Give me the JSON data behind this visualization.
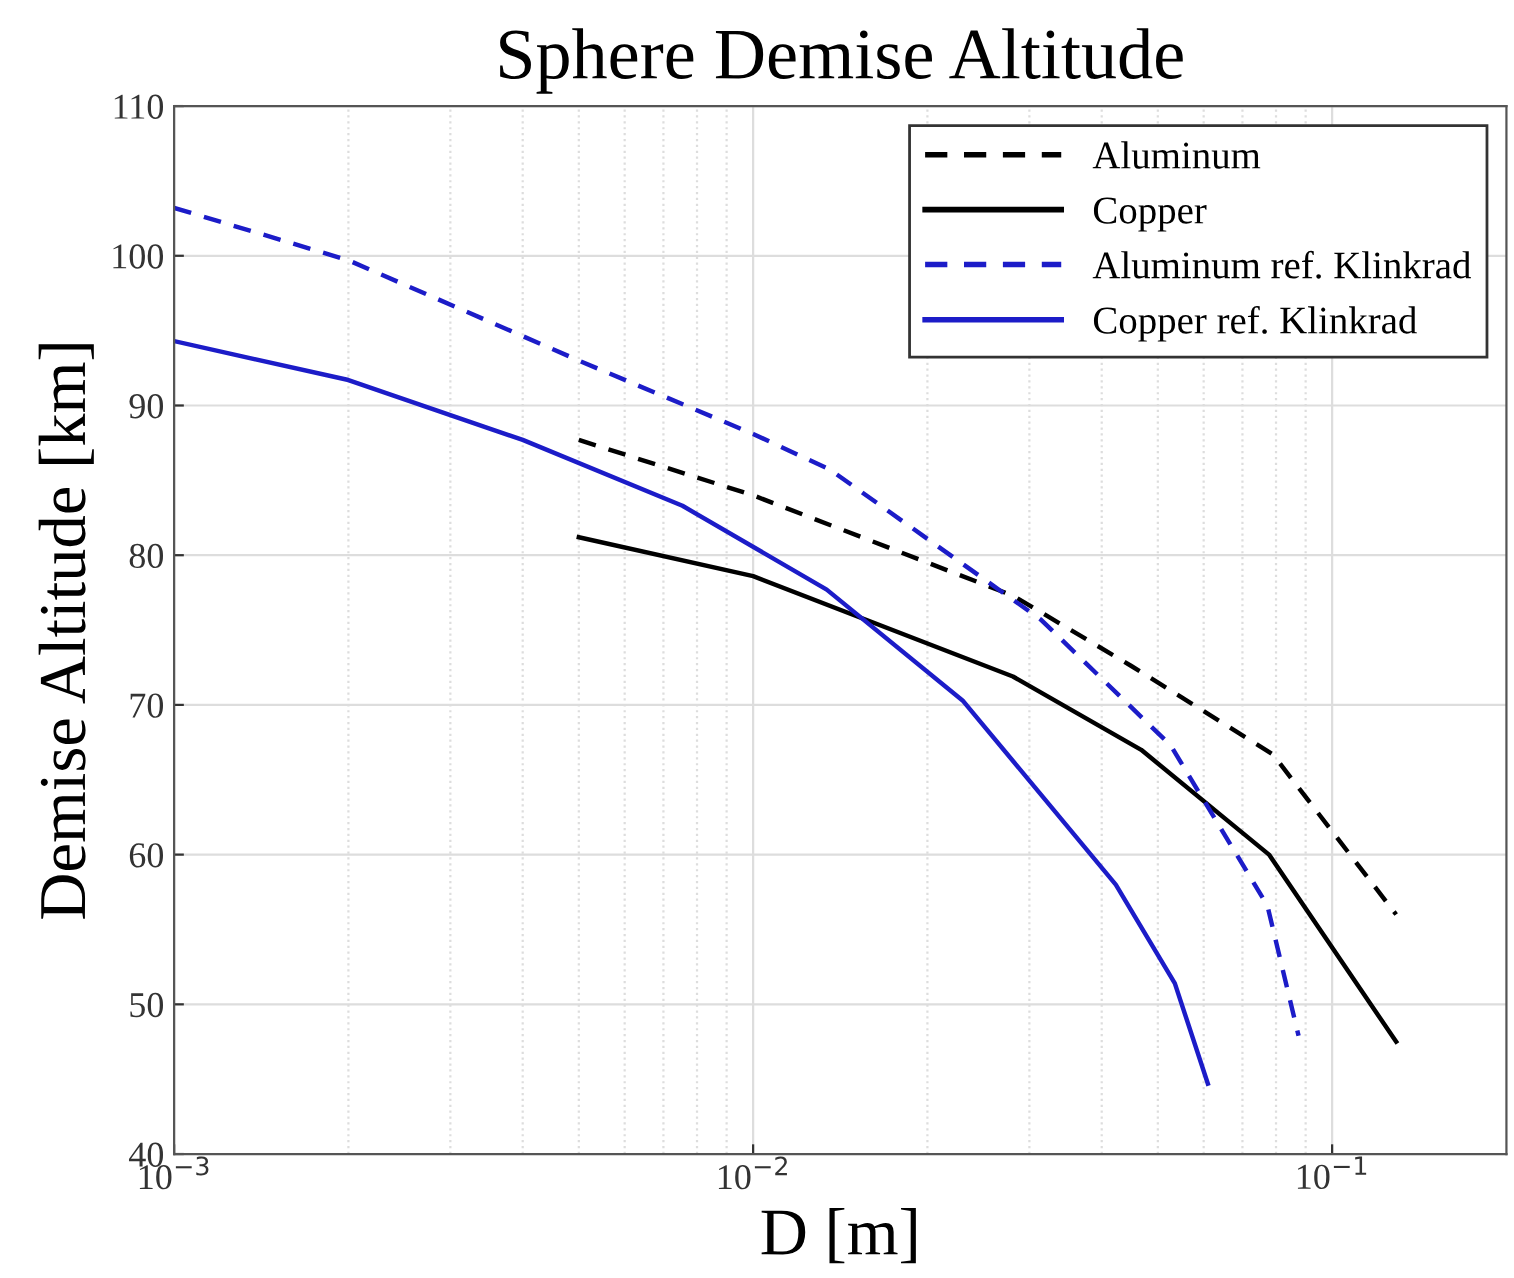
{
  "chart_data": {
    "type": "line",
    "title": "Sphere Demise Altitude",
    "xlabel": "D [m]",
    "ylabel": "Demise Altitude [km]",
    "log": "x",
    "xlim": [
      0.001,
      0.2
    ],
    "xticks": [
      {
        "value": 0.001,
        "label": "10$^{−3}$"
      },
      {
        "value": 0.01,
        "label": "10$^{−2}$"
      },
      {
        "value": 0.1,
        "label": "10$^{−1}$"
      }
    ],
    "ylim": [
      40,
      110
    ],
    "yticks": [
      40,
      50,
      60,
      70,
      80,
      90,
      100,
      110
    ],
    "grid": true,
    "legend": "top right",
    "marker": "none",
    "series": [
      {
        "name": "Aluminum",
        "color": "#000000",
        "line_style": "dashed",
        "x": [
          0.005,
          0.01,
          0.0281,
          0.045,
          0.079,
          0.129
        ],
        "values": [
          87.7,
          84.0,
          77.3,
          72.6,
          66.7,
          56.0
        ]
      },
      {
        "name": "Copper",
        "color": "#000000",
        "line_style": "solid",
        "x": [
          0.005,
          0.01,
          0.0281,
          0.0468,
          0.0778,
          0.129
        ],
        "values": [
          81.2,
          78.6,
          71.9,
          67.0,
          60.0,
          47.5
        ]
      },
      {
        "name": "Aluminum ref. Klinkrad",
        "color": "#1c1cc8",
        "line_style": "dashed",
        "x": [
          0.001,
          0.002,
          0.005,
          0.01,
          0.0136,
          0.0314,
          0.0526,
          0.0773,
          0.0875
        ],
        "values": [
          103.2,
          99.7,
          93.0,
          88.1,
          85.7,
          75.7,
          67.3,
          56.6,
          47.9
        ]
      },
      {
        "name": "Copper ref. Klinkrad",
        "color": "#1c1cc8",
        "line_style": "solid",
        "x": [
          0.001,
          0.002,
          0.004,
          0.00755,
          0.0134,
          0.023,
          0.0423,
          0.0535,
          0.061
        ],
        "values": [
          94.3,
          91.7,
          87.7,
          83.3,
          77.7,
          70.3,
          58.0,
          51.4,
          44.7
        ]
      }
    ]
  }
}
